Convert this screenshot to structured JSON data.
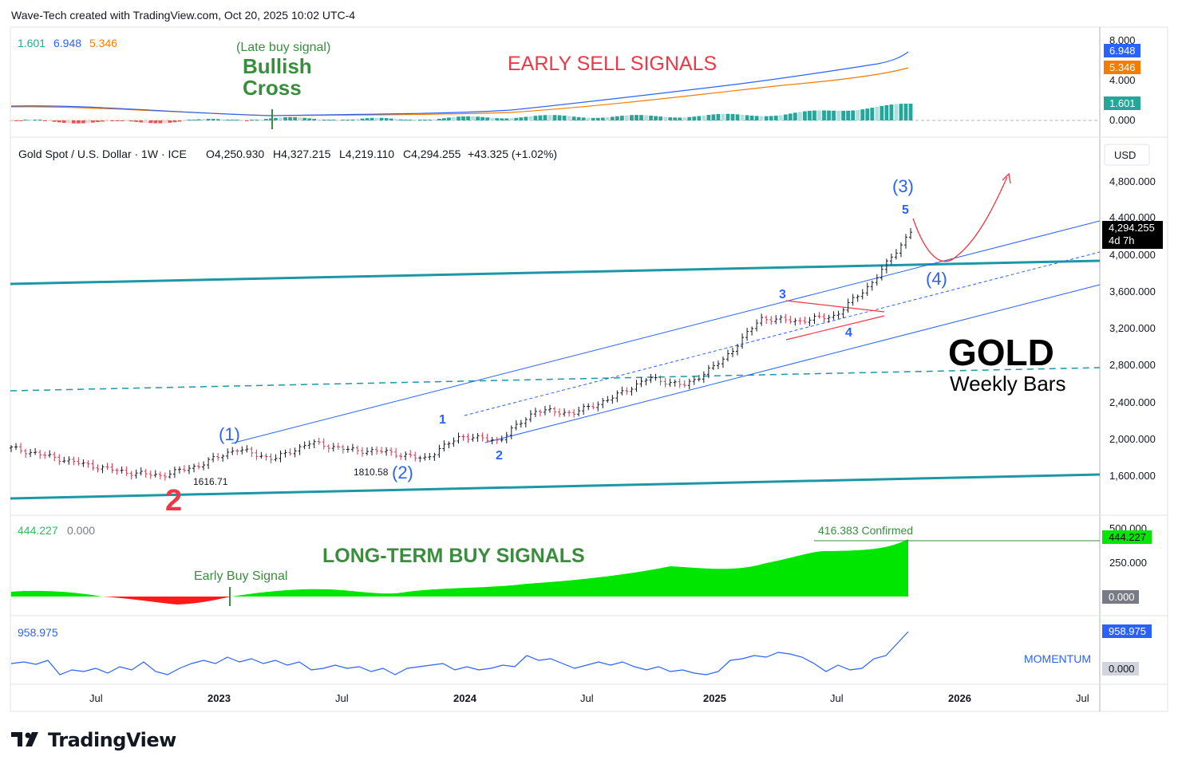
{
  "header": {
    "title": "Wave-Tech created with TradingView.com, Oct 20, 2025 10:02 UTC-4"
  },
  "macd": {
    "values": {
      "hist": "1.601",
      "macd": "6.948",
      "signal": "5.346"
    },
    "scale": [
      "8.000",
      "4.000",
      "0.000"
    ],
    "badges": {
      "macd": "6.948",
      "signal": "5.346",
      "hist": "1.601"
    },
    "annotations": {
      "late_buy": "(Late buy signal)",
      "bullish": "Bullish",
      "cross": "Cross",
      "early_sell": "EARLY SELL SIGNALS"
    },
    "colors": {
      "macd": "#2962ff",
      "signal": "#f57c00",
      "hist_up": "#26a69a",
      "hist_dn": "#ef5350"
    }
  },
  "main": {
    "legend": {
      "symbol": "Gold Spot / U.S. Dollar · 1W · ICE",
      "open": "O4,250.930",
      "high": "H4,327.215",
      "low": "L4,219.110",
      "close": "C4,294.255",
      "change": "+43.325 (+1.02%)"
    },
    "currency": "USD",
    "price_scale": [
      "4,800.000",
      "4,400.000",
      "4,000.000",
      "3,600.000",
      "3,200.000",
      "2,800.000",
      "2,400.000",
      "2,000.000",
      "1,600.000"
    ],
    "last_price": "4,294.255",
    "countdown": "4d 7h",
    "title": "GOLD",
    "subtitle": "Weekly Bars",
    "waves": {
      "w2_big": "2",
      "w1_paren": "(1)",
      "w2_paren": "(2)",
      "w3_paren": "(3)",
      "w4_paren": "(4)",
      "m1": "1",
      "m2": "2",
      "m3": "3",
      "m4": "4",
      "m5": "5"
    },
    "price_labels": {
      "low1": "1616.71",
      "low2": "1810.58"
    }
  },
  "lt": {
    "values": {
      "a": "444.227",
      "b": "0.000"
    },
    "scale": [
      "500.000",
      "250.000"
    ],
    "badges": {
      "a": "444.227",
      "b": "0.000"
    },
    "annotations": {
      "title": "LONG-TERM BUY SIGNALS",
      "early_buy": "Early Buy Signal",
      "confirmed": "416.383 Confirmed"
    }
  },
  "momentum": {
    "value": "958.975",
    "badges": {
      "a": "958.975",
      "b": "0.000"
    },
    "label": "MOMENTUM"
  },
  "time_axis": [
    "Jul",
    "2023",
    "Jul",
    "2024",
    "Jul",
    "2025",
    "Jul",
    "2026",
    "Jul"
  ],
  "brand": {
    "name": "TradingView"
  },
  "chart_data": [
    {
      "type": "line",
      "name_hint": "MACD pane",
      "x": [
        "2022-04",
        "2022-10",
        "2023-04",
        "2023-10",
        "2024-04",
        "2024-10",
        "2025-04",
        "2025-10"
      ],
      "series": [
        {
          "name": "",
          "values": [
            0.4,
            0.1,
            0.2,
            0.3,
            1.2,
            2.2,
            3.6,
            6.948
          ]
        },
        {
          "name": "",
          "values": [
            0.5,
            0.3,
            0.0,
            0.2,
            0.8,
            1.8,
            3.0,
            5.346
          ]
        }
      ],
      "ylim": [
        -1,
        8
      ]
    },
    {
      "type": "line",
      "name_hint": "Gold weekly close",
      "x": [
        "2022-04",
        "2022-06",
        "2022-08",
        "2022-09",
        "2022-10",
        "2022-11",
        "2023-01",
        "2023-02",
        "2023-04",
        "2023-06",
        "2023-08",
        "2023-10",
        "2023-12",
        "2024-02",
        "2024-04",
        "2024-06",
        "2024-08",
        "2024-10",
        "2024-12",
        "2025-02",
        "2025-04",
        "2025-06",
        "2025-08",
        "2025-09",
        "2025-10"
      ],
      "values": [
        1940,
        1850,
        1760,
        1680,
        1640,
        1750,
        1930,
        1820,
        2000,
        1920,
        1900,
        1820,
        2070,
        2020,
        2350,
        2320,
        2480,
        2700,
        2620,
        2900,
        3350,
        3320,
        3380,
        3750,
        4294.255
      ],
      "ylim": [
        1400,
        5000
      ]
    },
    {
      "type": "area",
      "name_hint": "Long-term buy signal oscillator",
      "x": [
        "2022-04",
        "2022-08",
        "2022-11",
        "2023-02",
        "2023-06",
        "2023-10",
        "2024-02",
        "2024-06",
        "2024-10",
        "2025-02",
        "2025-06",
        "2025-10"
      ],
      "values": [
        40,
        0,
        -60,
        10,
        60,
        30,
        80,
        140,
        220,
        260,
        330,
        444.227
      ],
      "ylim": [
        -100,
        500
      ]
    },
    {
      "type": "line",
      "name_hint": "Momentum",
      "x": [
        "2022-04",
        "2022-08",
        "2022-12",
        "2023-04",
        "2023-08",
        "2023-12",
        "2024-04",
        "2024-08",
        "2024-12",
        "2025-04",
        "2025-08",
        "2025-10"
      ],
      "values": [
        100,
        -50,
        60,
        250,
        30,
        120,
        200,
        80,
        50,
        300,
        150,
        958.975
      ],
      "ylim": [
        -300,
        1100
      ]
    }
  ]
}
